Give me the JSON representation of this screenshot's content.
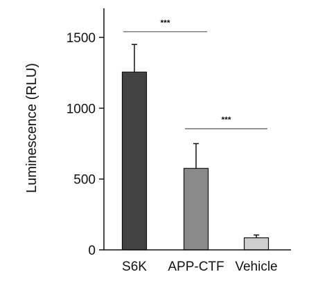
{
  "chart_data": {
    "type": "bar",
    "categories": [
      "S6K",
      "APP-CTF",
      "Vehicle"
    ],
    "values": [
      1255,
      575,
      85
    ],
    "errors": [
      195,
      175,
      20
    ],
    "colors": [
      "#424242",
      "#8a8a8a",
      "#cfcfcf"
    ],
    "title": "",
    "xlabel": "",
    "ylabel": "Luminescence (RLU)",
    "ylim": [
      0,
      1500
    ],
    "yticks": [
      0,
      500,
      1000,
      1500
    ],
    "grid": false,
    "significance": [
      {
        "from": 0,
        "to": 1,
        "label": "***",
        "y": 1540
      },
      {
        "from": 1,
        "to": 2,
        "label": "***",
        "y": 855
      }
    ]
  }
}
